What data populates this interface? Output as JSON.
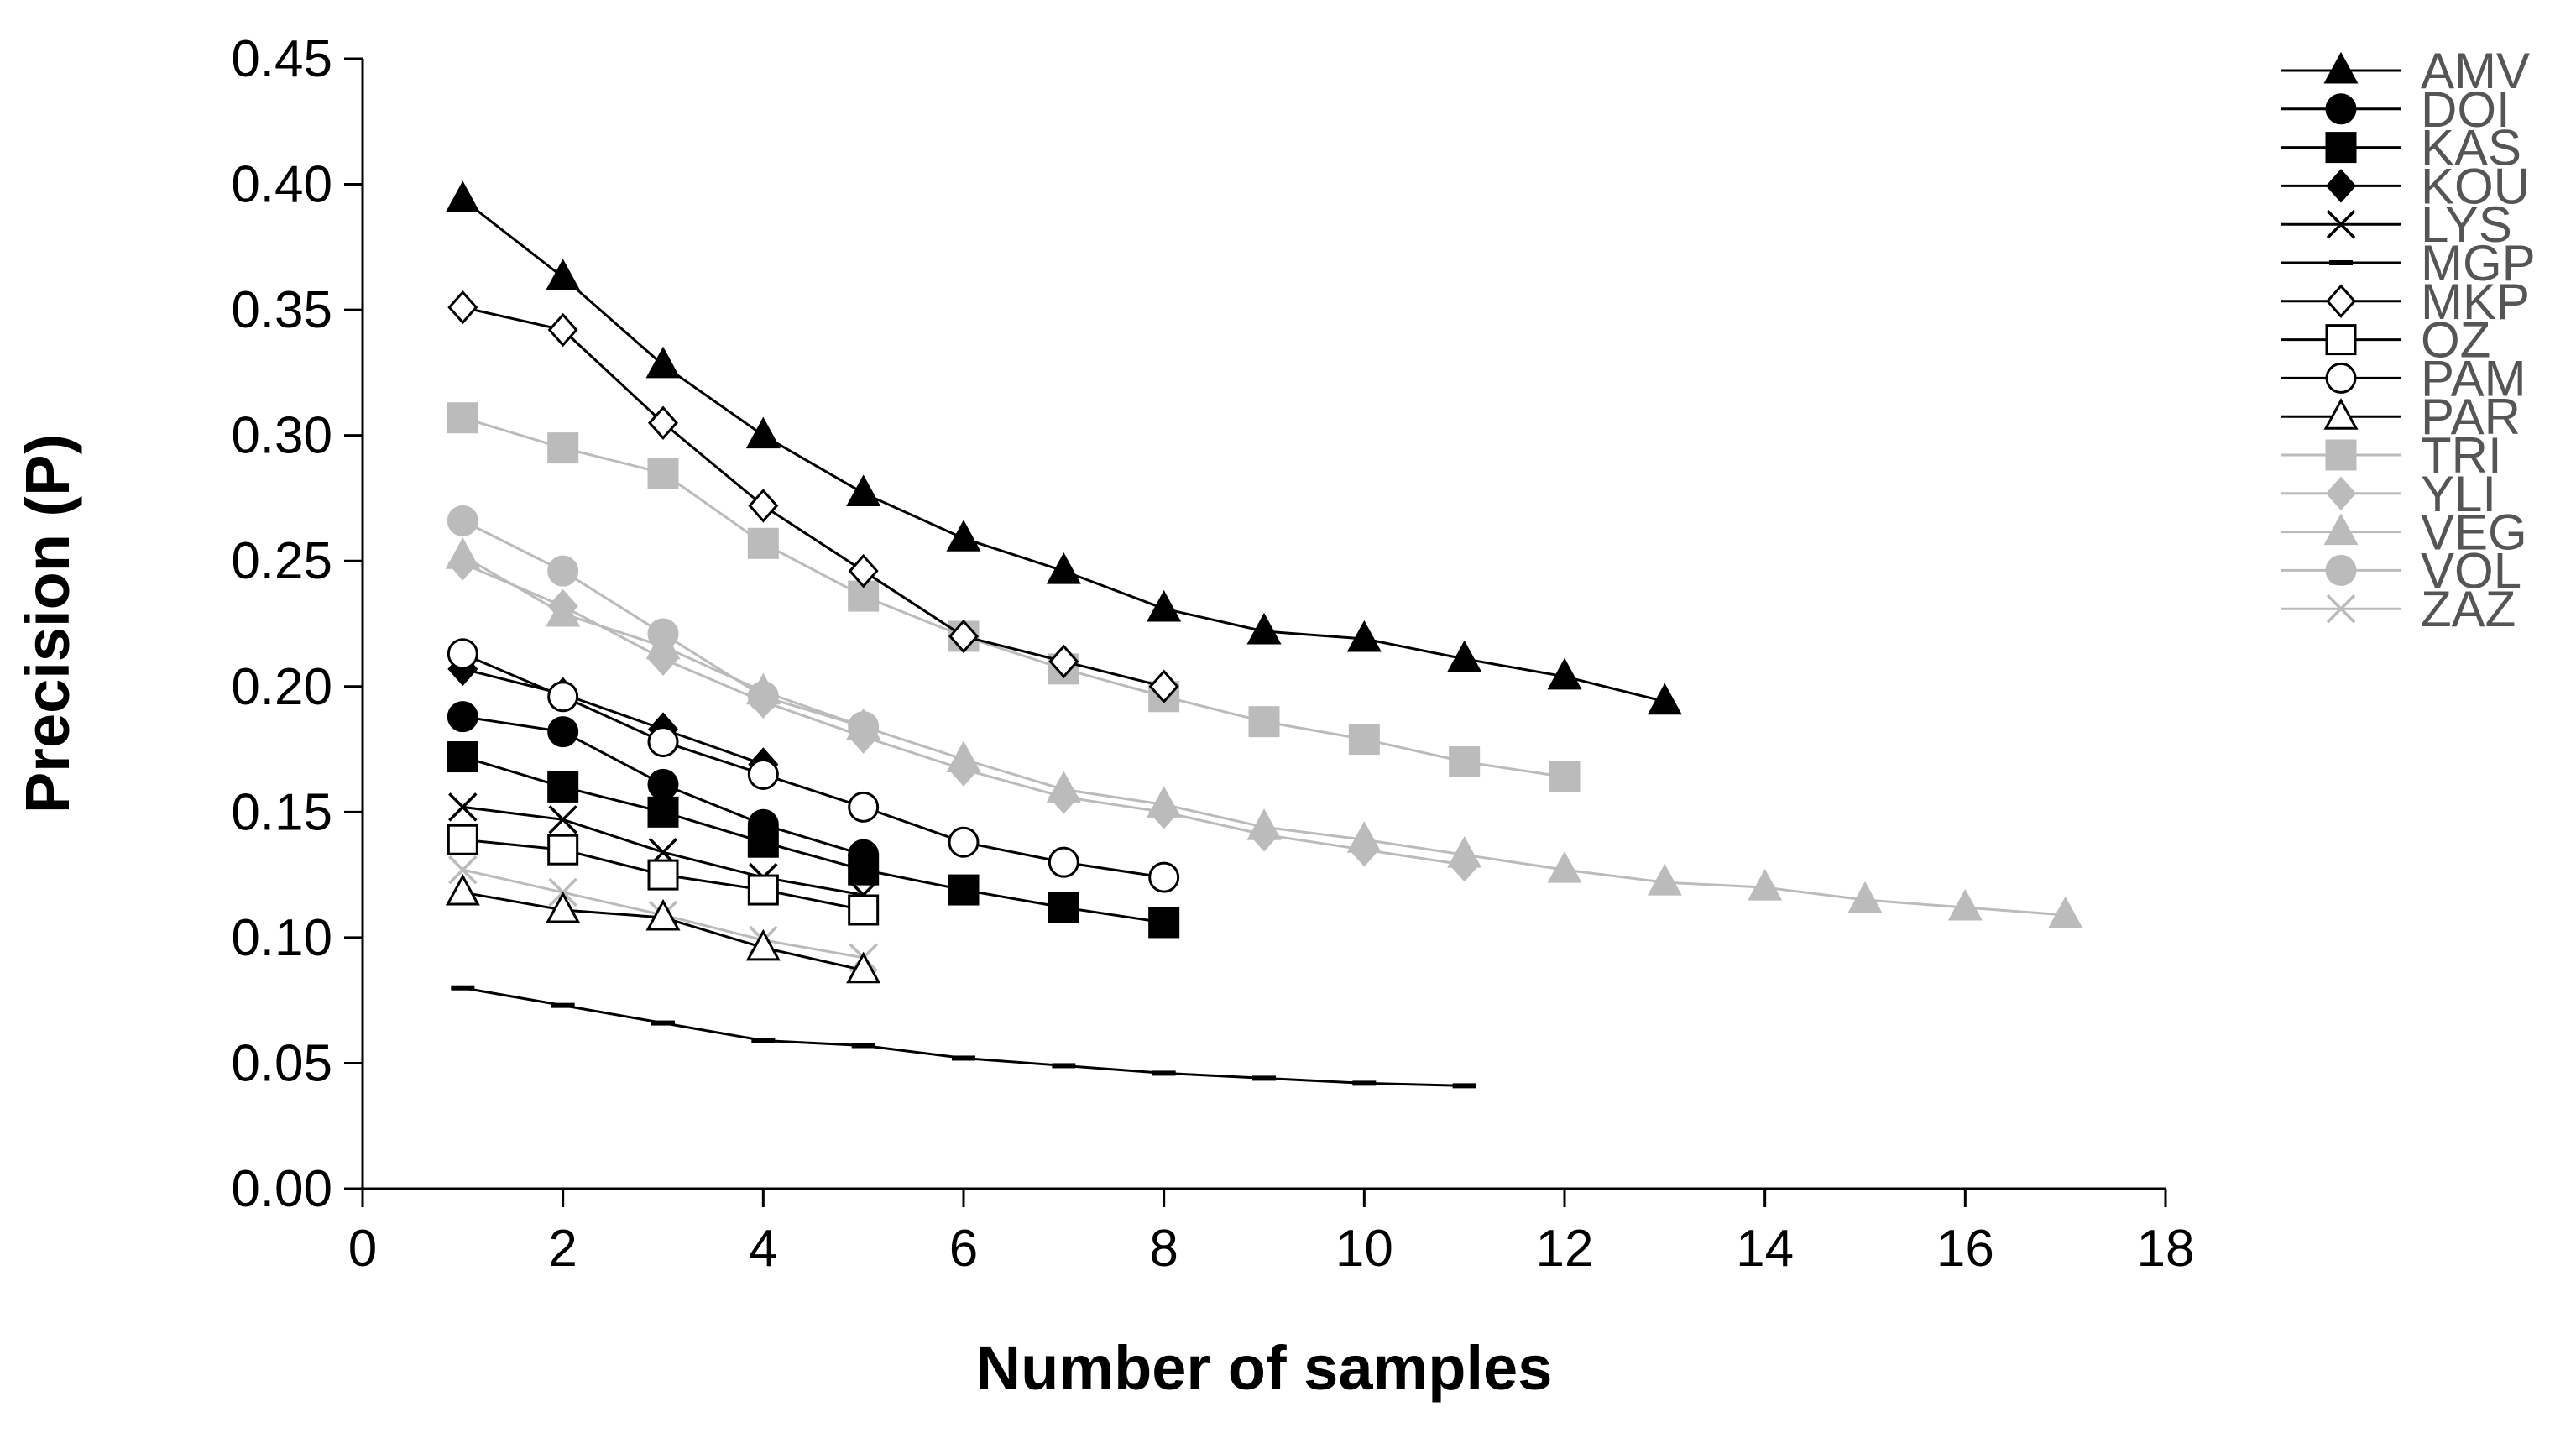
{
  "chart_data": {
    "type": "line",
    "title": "",
    "xlabel": "Number of samples",
    "ylabel": "Precision (P)",
    "xlim": [
      0,
      18
    ],
    "ylim": [
      0,
      0.45
    ],
    "xticks": [
      0,
      2,
      4,
      6,
      8,
      10,
      12,
      14,
      16,
      18
    ],
    "xtick_labels": [
      "0",
      "2",
      "4",
      "6",
      "8",
      "10",
      "12",
      "14",
      "16",
      "18"
    ],
    "yticks": [
      0,
      0.05,
      0.1,
      0.15,
      0.2,
      0.25,
      0.3,
      0.35,
      0.4,
      0.45
    ],
    "ytick_labels": [
      "0.00",
      "0.05",
      "0.10",
      "0.15",
      "0.20",
      "0.25",
      "0.30",
      "0.35",
      "0.40",
      "0.45"
    ],
    "grid": false,
    "legend_position": "right",
    "series": [
      {
        "name": "AMV",
        "marker": "triangle",
        "color": "#000000",
        "fill": "#000000",
        "x": [
          1,
          2,
          3,
          4,
          5,
          6,
          7,
          8,
          9,
          10,
          11,
          12,
          13
        ],
        "values": [
          0.394,
          0.363,
          0.328,
          0.3,
          0.277,
          0.259,
          0.246,
          0.231,
          0.222,
          0.219,
          0.211,
          0.204,
          0.194
        ]
      },
      {
        "name": "DOI",
        "marker": "circle",
        "color": "#000000",
        "fill": "#000000",
        "x": [
          1,
          2,
          3,
          4,
          5
        ],
        "values": [
          0.188,
          0.182,
          0.161,
          0.145,
          0.133
        ]
      },
      {
        "name": "KAS",
        "marker": "square",
        "color": "#000000",
        "fill": "#000000",
        "x": [
          1,
          2,
          3,
          4,
          5,
          6,
          7,
          8
        ],
        "values": [
          0.172,
          0.16,
          0.15,
          0.138,
          0.127,
          0.119,
          0.112,
          0.106
        ]
      },
      {
        "name": "KOU",
        "marker": "diamond",
        "color": "#000000",
        "fill": "#000000",
        "x": [
          1,
          2,
          3,
          4
        ],
        "values": [
          0.207,
          0.197,
          0.183,
          0.169
        ]
      },
      {
        "name": "LYS",
        "marker": "x",
        "color": "#000000",
        "fill": "none",
        "x": [
          1,
          2,
          3,
          4,
          5
        ],
        "values": [
          0.152,
          0.147,
          0.134,
          0.124,
          0.117
        ]
      },
      {
        "name": "MGP",
        "marker": "dash",
        "color": "#000000",
        "fill": "#000000",
        "x": [
          1,
          2,
          3,
          4,
          5,
          6,
          7,
          8,
          9,
          10,
          11
        ],
        "values": [
          0.08,
          0.073,
          0.066,
          0.059,
          0.057,
          0.052,
          0.049,
          0.046,
          0.044,
          0.042,
          0.041
        ]
      },
      {
        "name": "MKP",
        "marker": "diamond",
        "color": "#000000",
        "fill": "#ffffff",
        "x": [
          1,
          2,
          3,
          4,
          5,
          6,
          7,
          8
        ],
        "values": [
          0.351,
          0.342,
          0.305,
          0.272,
          0.246,
          0.22,
          0.21,
          0.2
        ]
      },
      {
        "name": "OZ",
        "marker": "square",
        "color": "#000000",
        "fill": "#ffffff",
        "x": [
          1,
          2,
          3,
          4,
          5
        ],
        "values": [
          0.139,
          0.135,
          0.125,
          0.119,
          0.111
        ]
      },
      {
        "name": "PAM",
        "marker": "circle",
        "color": "#000000",
        "fill": "#ffffff",
        "x": [
          1,
          2,
          3,
          4,
          5,
          6,
          7,
          8
        ],
        "values": [
          0.213,
          0.196,
          0.178,
          0.165,
          0.152,
          0.138,
          0.13,
          0.124
        ]
      },
      {
        "name": "PAR",
        "marker": "triangle",
        "color": "#000000",
        "fill": "#ffffff",
        "x": [
          1,
          2,
          3,
          4,
          5
        ],
        "values": [
          0.118,
          0.111,
          0.108,
          0.096,
          0.087
        ]
      },
      {
        "name": "TRI",
        "marker": "square",
        "color": "#bbbbbb",
        "fill": "#bbbbbb",
        "x": [
          1,
          2,
          3,
          4,
          5,
          6,
          7,
          8,
          9,
          10,
          11,
          12
        ],
        "values": [
          0.307,
          0.295,
          0.285,
          0.257,
          0.236,
          0.22,
          0.207,
          0.196,
          0.186,
          0.179,
          0.17,
          0.164
        ]
      },
      {
        "name": "YLI",
        "marker": "diamond",
        "color": "#bbbbbb",
        "fill": "#bbbbbb",
        "x": [
          1,
          2,
          3,
          4,
          5,
          6,
          7,
          8,
          9,
          10,
          11
        ],
        "values": [
          0.249,
          0.232,
          0.211,
          0.194,
          0.18,
          0.167,
          0.156,
          0.15,
          0.141,
          0.135,
          0.129
        ]
      },
      {
        "name": "VEG",
        "marker": "triangle",
        "color": "#bbbbbb",
        "fill": "#bbbbbb",
        "x": [
          1,
          2,
          3,
          4,
          5,
          6,
          7,
          8,
          9,
          10,
          11,
          12,
          13,
          14,
          15,
          16,
          17
        ],
        "values": [
          0.252,
          0.229,
          0.216,
          0.198,
          0.184,
          0.171,
          0.159,
          0.153,
          0.144,
          0.139,
          0.133,
          0.127,
          0.122,
          0.12,
          0.115,
          0.112,
          0.109
        ]
      },
      {
        "name": "VOL",
        "marker": "circle",
        "color": "#bbbbbb",
        "fill": "#bbbbbb",
        "x": [
          1,
          2,
          3,
          4,
          5
        ],
        "values": [
          0.266,
          0.246,
          0.221,
          0.196,
          0.184
        ]
      },
      {
        "name": "ZAZ",
        "marker": "x",
        "color": "#bbbbbb",
        "fill": "none",
        "x": [
          1,
          2,
          3,
          4,
          5
        ],
        "values": [
          0.127,
          0.118,
          0.109,
          0.099,
          0.092
        ]
      }
    ]
  }
}
